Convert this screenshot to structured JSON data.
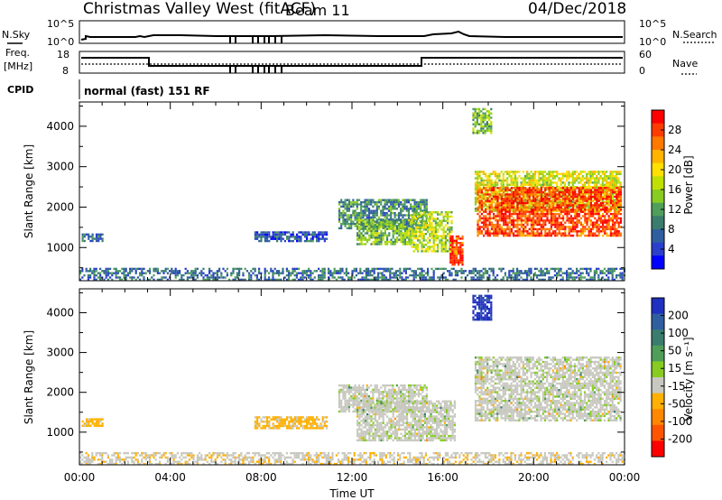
{
  "header": {
    "title": "Christmas Valley West (fitACF)",
    "beam": "Beam 11",
    "date": "04/Dec/2018"
  },
  "strips": {
    "nsky_label": "N.Sky",
    "nsearch_label": "N.Search",
    "freq_label": "Freq.",
    "freq_unit": "[MHz]",
    "nave_label": "Nave",
    "cpid_label": "CPID",
    "cpid_text": "normal (fast) 151 RF",
    "noise_ticks_left": [
      "10^5",
      "10^0"
    ],
    "noise_ticks_right": [
      "10^5",
      "10^0"
    ],
    "freq_ticks": [
      "18",
      "8"
    ],
    "nave_ticks": [
      "60",
      "0"
    ]
  },
  "colorbars": {
    "power": {
      "label": "Power [dB]",
      "ticks": [
        "28",
        "24",
        "20",
        "16",
        "12",
        "8",
        "4"
      ],
      "colors": [
        "#ff0000",
        "#ff3c00",
        "#ff7800",
        "#ffb400",
        "#ffe000",
        "#bfe000",
        "#88cc22",
        "#4f9f5a",
        "#3a7d6e",
        "#2f5fa0",
        "#2a3fcc",
        "#0000ff"
      ]
    },
    "velocity": {
      "label": "Velocity [m s⁻¹]",
      "ticks": [
        "200",
        "100",
        "50",
        "15",
        "-15",
        "-50",
        "-100",
        "-200"
      ],
      "colors": [
        "#2030c0",
        "#2f5fa0",
        "#3a7d6e",
        "#4f9f5a",
        "#88cc22",
        "#c8c8c0",
        "#ffb000",
        "#ff8800",
        "#ff5500",
        "#ff0000"
      ]
    }
  },
  "chart_data": [
    {
      "type": "heatmap",
      "title": "Christmas Valley West (fitACF)",
      "xlabel": "Time UT",
      "ylabel": "Slant Range [km]",
      "x_ticks": [
        "00:00",
        "04:00",
        "08:00",
        "12:00",
        "16:00",
        "20:00",
        "00:00"
      ],
      "xlim_hours": [
        0,
        24
      ],
      "y_ticks": [
        1000,
        2000,
        3000,
        4000
      ],
      "ylim_km": [
        180,
        4600
      ],
      "colorbar": "Power [dB]",
      "clim": [
        0,
        32
      ],
      "regions": [
        {
          "t": [
            0.1,
            1.0
          ],
          "r": [
            1150,
            1350
          ],
          "value": 8
        },
        {
          "t": [
            7.7,
            10.9
          ],
          "r": [
            1150,
            1400
          ],
          "value": 6
        },
        {
          "t": [
            11.4,
            15.3
          ],
          "r": [
            1500,
            2200
          ],
          "value": 10
        },
        {
          "t": [
            12.2,
            14.6
          ],
          "r": [
            1100,
            1700
          ],
          "value": 14
        },
        {
          "t": [
            14.6,
            16.4
          ],
          "r": [
            900,
            1900
          ],
          "value": 16
        },
        {
          "t": [
            16.3,
            16.9
          ],
          "r": [
            600,
            1300
          ],
          "value": 28
        },
        {
          "t": [
            17.3,
            18.1
          ],
          "r": [
            3850,
            4450
          ],
          "value": 14
        },
        {
          "t": [
            17.4,
            23.8
          ],
          "r": [
            1900,
            2900
          ],
          "value": 18
        },
        {
          "t": [
            17.5,
            23.8
          ],
          "r": [
            1300,
            2500
          ],
          "value": 28
        },
        {
          "t": [
            0.0,
            24.0
          ],
          "r": [
            180,
            500
          ],
          "value": 8
        }
      ]
    },
    {
      "type": "heatmap",
      "xlabel": "Time UT",
      "ylabel": "Slant Range [km]",
      "x_ticks": [
        "00:00",
        "04:00",
        "08:00",
        "12:00",
        "16:00",
        "20:00",
        "00:00"
      ],
      "xlim_hours": [
        0,
        24
      ],
      "y_ticks": [
        1000,
        2000,
        3000,
        4000
      ],
      "ylim_km": [
        180,
        4600
      ],
      "colorbar": "Velocity [m s⁻¹]",
      "clim": [
        -250,
        250
      ],
      "regions": [
        {
          "t": [
            0.1,
            1.0
          ],
          "r": [
            1150,
            1350
          ],
          "value": -60
        },
        {
          "t": [
            7.7,
            10.9
          ],
          "r": [
            1100,
            1400
          ],
          "value": -60
        },
        {
          "t": [
            11.4,
            15.3
          ],
          "r": [
            1500,
            2200
          ],
          "value": 0
        },
        {
          "t": [
            12.2,
            16.5
          ],
          "r": [
            800,
            1800
          ],
          "value": 0
        },
        {
          "t": [
            17.3,
            18.1
          ],
          "r": [
            3850,
            4450
          ],
          "value": 220
        },
        {
          "t": [
            17.4,
            23.8
          ],
          "r": [
            1300,
            2900
          ],
          "value": 0
        },
        {
          "t": [
            0.0,
            24.0
          ],
          "r": [
            180,
            500
          ],
          "value": -40
        }
      ]
    }
  ]
}
